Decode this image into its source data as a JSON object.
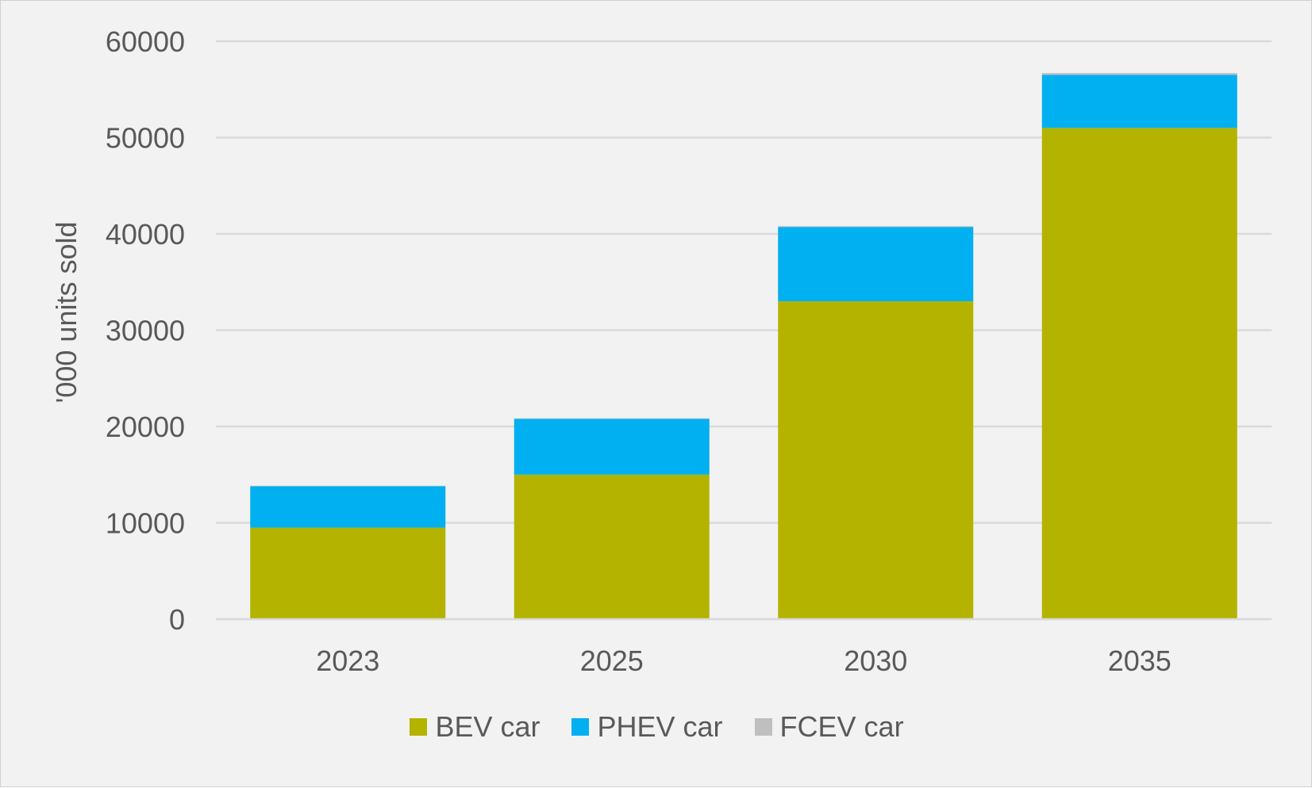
{
  "chart_data": {
    "type": "bar",
    "stacked": true,
    "categories": [
      "2023",
      "2025",
      "2030",
      "2035"
    ],
    "series": [
      {
        "name": "BEV car",
        "color": "#b3b300",
        "values": [
          9500,
          15000,
          33000,
          51000
        ]
      },
      {
        "name": "PHEV car",
        "color": "#00b0f0",
        "values": [
          4300,
          5800,
          7700,
          5500
        ]
      },
      {
        "name": "FCEV car",
        "color": "#bfbfbf",
        "values": [
          50,
          50,
          100,
          200
        ]
      }
    ],
    "title": "",
    "xlabel": "",
    "ylabel": "'000 units sold",
    "ylim": [
      0,
      60000
    ],
    "yticks": [
      "0",
      "10000",
      "20000",
      "30000",
      "40000",
      "50000",
      "60000"
    ],
    "grid": true,
    "legend_position": "bottom"
  }
}
